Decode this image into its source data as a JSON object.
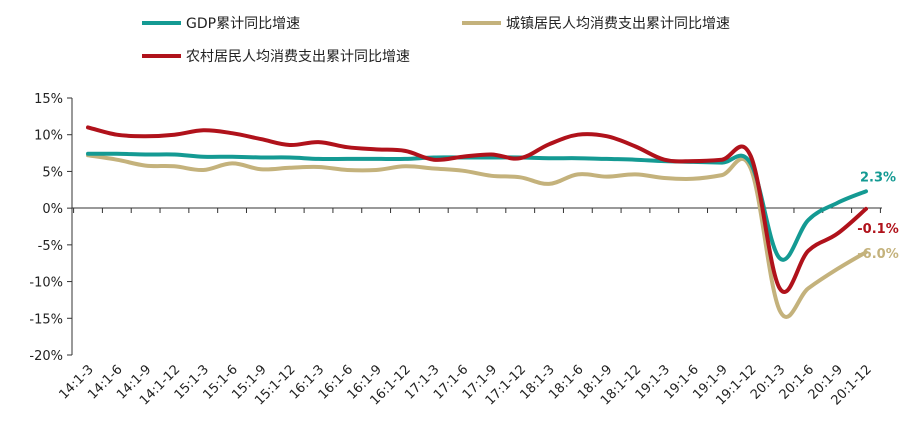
{
  "chart_data": {
    "type": "line",
    "title": "",
    "xlabel": "",
    "ylabel": "",
    "ylim": [
      -20,
      15
    ],
    "yticks": [
      15,
      10,
      5,
      0,
      -5,
      -10,
      -15,
      -20
    ],
    "y_tick_labels": [
      "15%",
      "10%",
      "5%",
      "0%",
      "-5%",
      "-10%",
      "-15%",
      "-20%"
    ],
    "grid": false,
    "legend_position": "top",
    "categories": [
      "14:1-3",
      "14:1-6",
      "14:1-9",
      "14:1-12",
      "15:1-3",
      "15:1-6",
      "15:1-9",
      "15:1-12",
      "16:1-3",
      "16:1-6",
      "16:1-9",
      "16:1-12",
      "17:1-3",
      "17:1-6",
      "17:1-9",
      "17:1-12",
      "18:1-3",
      "18:1-6",
      "18:1-9",
      "18:1-12",
      "19:1-3",
      "19:1-6",
      "19:1-9",
      "19:1-12",
      "20:1-3",
      "20:1-6",
      "20:1-9",
      "20:1-12"
    ],
    "series": [
      {
        "name": "GDP累计同比增速",
        "color": "#149a93",
        "values": [
          7.4,
          7.4,
          7.3,
          7.3,
          7.0,
          7.0,
          6.9,
          6.9,
          6.7,
          6.7,
          6.7,
          6.7,
          6.9,
          6.9,
          6.9,
          6.9,
          6.8,
          6.8,
          6.7,
          6.6,
          6.4,
          6.3,
          6.2,
          6.1,
          -6.8,
          -1.6,
          0.7,
          2.3
        ],
        "end_label": "2.3%"
      },
      {
        "name": "城镇居民人均消费支出累计同比增速",
        "color": "#c4b27c",
        "values": [
          7.2,
          6.6,
          5.8,
          5.7,
          5.2,
          6.1,
          5.3,
          5.5,
          5.6,
          5.2,
          5.2,
          5.7,
          5.4,
          5.1,
          4.4,
          4.2,
          3.3,
          4.6,
          4.3,
          4.6,
          4.1,
          4.0,
          4.5,
          5.4,
          -13.9,
          -10.9,
          -8.3,
          -6.0
        ],
        "end_label": "-6.0%"
      },
      {
        "name": "农村居民人均消费支出累计同比增速",
        "color": "#b0121b",
        "values": [
          11.0,
          10.0,
          9.8,
          10.0,
          10.6,
          10.2,
          9.4,
          8.6,
          9.0,
          8.3,
          8.0,
          7.8,
          6.6,
          7.0,
          7.3,
          6.8,
          8.7,
          10.0,
          9.8,
          8.4,
          6.6,
          6.4,
          6.6,
          7.1,
          -10.9,
          -5.8,
          -3.5,
          -0.1
        ],
        "end_label": "-0.1%"
      }
    ]
  }
}
